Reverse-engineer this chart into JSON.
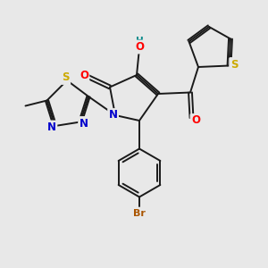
{
  "background_color": "#e8e8e8",
  "bond_color": "#1a1a1a",
  "bond_width": 1.4,
  "atom_colors": {
    "O": "#ff0000",
    "N": "#0000cc",
    "S": "#ccaa00",
    "Br": "#aa5500",
    "H": "#008888",
    "C": "#1a1a1a"
  },
  "font_size": 8.5,
  "font_size_br": 8.0
}
